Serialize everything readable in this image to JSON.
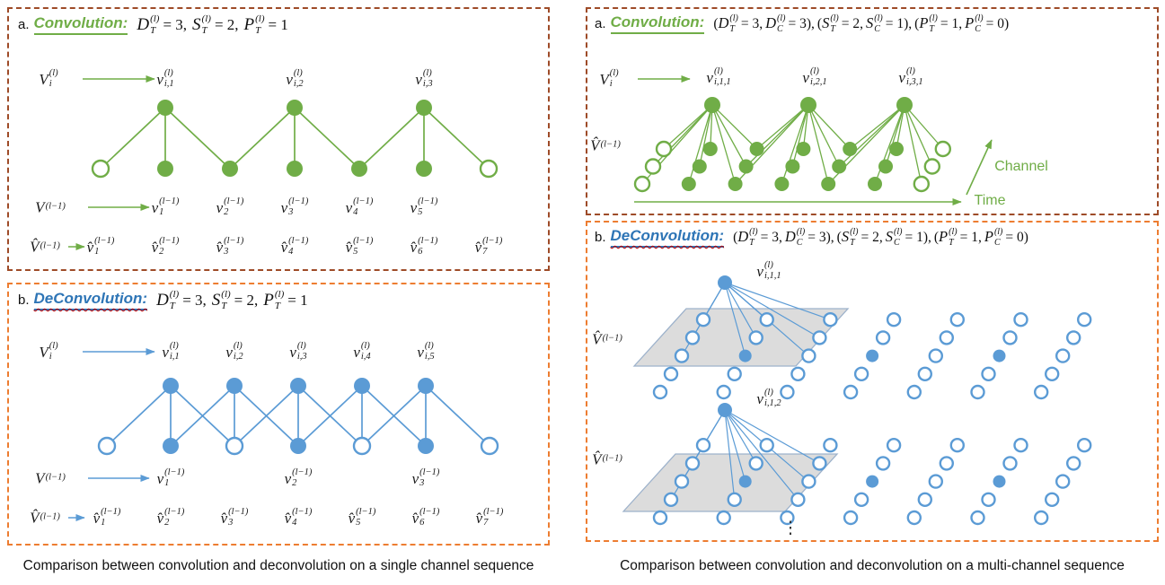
{
  "captions": {
    "left": "Comparison between convolution and deconvolution on a single channel sequence",
    "right": "Comparison between convolution and deconvolution on a multi-channel sequence"
  },
  "colors": {
    "green": "#70AD47",
    "blue": "#5B9BD5",
    "title_blue": "#2E75B6",
    "border_conv": "#9E4B28",
    "border_deconv": "#ED7D31",
    "plane_fill": "#D9D9D9",
    "plane_stroke": "#9DB2CB",
    "wavy_red": "#C00000"
  },
  "panels": {
    "left_conv": {
      "index": "a.",
      "title": "Convolution:",
      "params": [
        {
          "pre": "",
          "b": "D",
          "sb": "T",
          "sp": "(l)",
          "post": "= 3,"
        },
        {
          "pre": "",
          "b": "S",
          "sb": "T",
          "sp": "(l)",
          "post": "= 2,"
        },
        {
          "pre": "",
          "b": "P",
          "sb": "T",
          "sp": "(l)",
          "post": "= 1"
        }
      ],
      "leaders": {
        "out": {
          "b": "V",
          "sb": "i",
          "sp": "(l)"
        },
        "inp": {
          "b": "V",
          "sb": "",
          "sp": "(l−1)"
        },
        "pad": {
          "b": "V̂",
          "sb": "",
          "sp": "(l−1)"
        }
      },
      "out_labels": [
        {
          "b": "v",
          "sb": "i,1",
          "sp": "(l)"
        },
        {
          "b": "v",
          "sb": "i,2",
          "sp": "(l)"
        },
        {
          "b": "v",
          "sb": "i,3",
          "sp": "(l)"
        }
      ],
      "in_labels": [
        {
          "b": "v",
          "sb": "1",
          "sp": "(l−1)"
        },
        {
          "b": "v",
          "sb": "2",
          "sp": "(l−1)"
        },
        {
          "b": "v",
          "sb": "3",
          "sp": "(l−1)"
        },
        {
          "b": "v",
          "sb": "4",
          "sp": "(l−1)"
        },
        {
          "b": "v",
          "sb": "5",
          "sp": "(l−1)"
        }
      ],
      "pad_labels": [
        {
          "b": "v̂",
          "sb": "1",
          "sp": "(l−1)"
        },
        {
          "b": "v̂",
          "sb": "2",
          "sp": "(l−1)"
        },
        {
          "b": "v̂",
          "sb": "3",
          "sp": "(l−1)"
        },
        {
          "b": "v̂",
          "sb": "4",
          "sp": "(l−1)"
        },
        {
          "b": "v̂",
          "sb": "5",
          "sp": "(l−1)"
        },
        {
          "b": "v̂",
          "sb": "6",
          "sp": "(l−1)"
        },
        {
          "b": "v̂",
          "sb": "7",
          "sp": "(l−1)"
        }
      ],
      "graph": {
        "outputs": 3,
        "kernel": 3,
        "stride": 2,
        "bottom_pattern": [
          0,
          1,
          1,
          1,
          1,
          1,
          0
        ]
      }
    },
    "left_deconv": {
      "index": "b.",
      "title": "DeConvolution:",
      "params": [
        {
          "pre": "",
          "b": "D",
          "sb": "T",
          "sp": "(l)",
          "post": "= 3,"
        },
        {
          "pre": "",
          "b": "S",
          "sb": "T",
          "sp": "(l)",
          "post": "= 2,"
        },
        {
          "pre": "",
          "b": "P",
          "sb": "T",
          "sp": "(l)",
          "post": "= 1"
        }
      ],
      "leaders": {
        "out": {
          "b": "V",
          "sb": "i",
          "sp": "(l)"
        },
        "inp": {
          "b": "V",
          "sb": "",
          "sp": "(l−1)"
        },
        "pad": {
          "b": "V̂",
          "sb": "",
          "sp": "(l−1)"
        }
      },
      "out_labels": [
        {
          "b": "v",
          "sb": "i,1",
          "sp": "(l)"
        },
        {
          "b": "v",
          "sb": "i,2",
          "sp": "(l)"
        },
        {
          "b": "v",
          "sb": "i,3",
          "sp": "(l)"
        },
        {
          "b": "v",
          "sb": "i,4",
          "sp": "(l)"
        },
        {
          "b": "v",
          "sb": "i,5",
          "sp": "(l)"
        }
      ],
      "in_labels": [
        {
          "b": "v",
          "sb": "1",
          "sp": "(l−1)"
        },
        {
          "b": "v",
          "sb": "2",
          "sp": "(l−1)"
        },
        {
          "b": "v",
          "sb": "3",
          "sp": "(l−1)"
        }
      ],
      "pad_labels": [
        {
          "b": "v̂",
          "sb": "1",
          "sp": "(l−1)"
        },
        {
          "b": "v̂",
          "sb": "2",
          "sp": "(l−1)"
        },
        {
          "b": "v̂",
          "sb": "3",
          "sp": "(l−1)"
        },
        {
          "b": "v̂",
          "sb": "4",
          "sp": "(l−1)"
        },
        {
          "b": "v̂",
          "sb": "5",
          "sp": "(l−1)"
        },
        {
          "b": "v̂",
          "sb": "6",
          "sp": "(l−1)"
        },
        {
          "b": "v̂",
          "sb": "7",
          "sp": "(l−1)"
        }
      ],
      "graph": {
        "outputs": 5,
        "kernel": 3,
        "stride": 1,
        "bottom_pattern": [
          0,
          1,
          0,
          1,
          0,
          1,
          0
        ]
      }
    },
    "right_conv": {
      "index": "a.",
      "title": "Convolution:",
      "params": [
        {
          "pre": "(",
          "b": "D",
          "sb": "T",
          "sp": "(l)",
          "post": "= 3,"
        },
        {
          "pre": "",
          "b": "D",
          "sb": "C",
          "sp": "(l)",
          "post": "= 3),"
        },
        {
          "pre": "(",
          "b": "S",
          "sb": "T",
          "sp": "(l)",
          "post": "= 2,"
        },
        {
          "pre": "",
          "b": "S",
          "sb": "C",
          "sp": "(l)",
          "post": "= 1),"
        },
        {
          "pre": "(",
          "b": "P",
          "sb": "T",
          "sp": "(l)",
          "post": "= 1,"
        },
        {
          "pre": "",
          "b": "P",
          "sb": "C",
          "sp": "(l)",
          "post": "= 0)"
        }
      ],
      "leaders": {
        "out": {
          "b": "V",
          "sb": "i",
          "sp": "(l)"
        },
        "pad": {
          "b": "V̂",
          "sb": "",
          "sp": "(l−1)"
        }
      },
      "out_labels": [
        {
          "b": "v",
          "sb": "i,1,1",
          "sp": "(l)"
        },
        {
          "b": "v",
          "sb": "i,2,1",
          "sp": "(l)"
        },
        {
          "b": "v",
          "sb": "i,3,1",
          "sp": "(l)"
        }
      ],
      "axes": {
        "time": "Time",
        "channel": "Channel"
      },
      "graph": {
        "outputs": 3,
        "time_steps": 7,
        "channels": 3,
        "stride_time": 2,
        "trio_pattern": [
          0,
          1,
          1,
          1,
          1,
          1,
          0
        ]
      }
    },
    "right_deconv": {
      "index": "b.",
      "title": "DeConvolution:",
      "params": [
        {
          "pre": "(",
          "b": "D",
          "sb": "T",
          "sp": "(l)",
          "post": "= 3,"
        },
        {
          "pre": "",
          "b": "D",
          "sb": "C",
          "sp": "(l)",
          "post": "= 3),"
        },
        {
          "pre": "(",
          "b": "S",
          "sb": "T",
          "sp": "(l)",
          "post": "= 2,"
        },
        {
          "pre": "",
          "b": "S",
          "sb": "C",
          "sp": "(l)",
          "post": "= 1),"
        },
        {
          "pre": "(",
          "b": "P",
          "sb": "T",
          "sp": "(l)",
          "post": "= 1,"
        },
        {
          "pre": "",
          "b": "P",
          "sb": "C",
          "sp": "(l)",
          "post": "= 0)"
        }
      ],
      "leaders": {
        "pad1": {
          "b": "V̂",
          "sb": "",
          "sp": "(l−1)"
        },
        "pad2": {
          "b": "V̂",
          "sb": "",
          "sp": "(l−1)"
        }
      },
      "node_labels": [
        {
          "b": "v",
          "sb": "i,1,1",
          "sp": "(l)"
        },
        {
          "b": "v",
          "sb": "i,1,2",
          "sp": "(l)"
        }
      ],
      "ellipsis": "⋮",
      "graph": {
        "time_steps": 7,
        "channels": 5,
        "filled_cells": [
          [
            1,
            2
          ],
          [
            3,
            2
          ],
          [
            5,
            2
          ]
        ],
        "kernel_time": 3,
        "kernel_channel": 3
      }
    }
  }
}
